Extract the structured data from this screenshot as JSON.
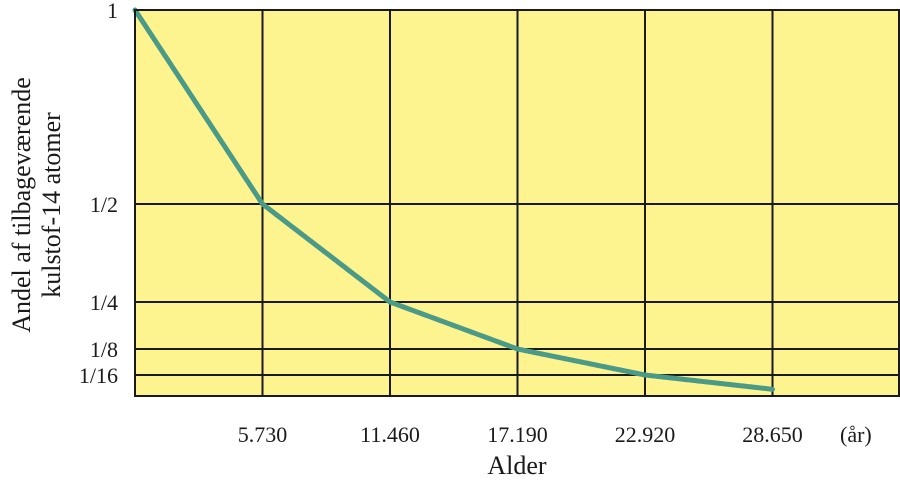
{
  "chart_data": {
    "type": "line",
    "title": "",
    "xlabel": "Alder",
    "x_unit": "(år)",
    "ylabel_lines": [
      "Andel af tilbageværende",
      "kulstof-14 atomer"
    ],
    "x_ticks": [
      {
        "value": 5730,
        "label": "5.730"
      },
      {
        "value": 11460,
        "label": "11.460"
      },
      {
        "value": 17190,
        "label": "17.190"
      },
      {
        "value": 22920,
        "label": "22.920"
      },
      {
        "value": 28650,
        "label": "28.650"
      }
    ],
    "xlim": [
      0,
      34380
    ],
    "y_ticks": [
      {
        "value": 1,
        "label": "1"
      },
      {
        "value": 0.5,
        "label": "1/2"
      },
      {
        "value": 0.25,
        "label": "1/4"
      },
      {
        "value": 0.125,
        "label": "1/8"
      },
      {
        "value": 0.0625,
        "label": "1/16"
      }
    ],
    "ylim": [
      0,
      1
    ],
    "series": [
      {
        "points": [
          {
            "x": 0,
            "y": 1
          },
          {
            "x": 5730,
            "y": 0.5
          },
          {
            "x": 11460,
            "y": 0.25
          },
          {
            "x": 17190,
            "y": 0.125
          },
          {
            "x": 22920,
            "y": 0.0625
          },
          {
            "x": 28650,
            "y": 0.03125
          }
        ]
      }
    ],
    "grid": true,
    "colors": {
      "background": "#fdf38f",
      "grid": "#1a1a1a",
      "line": "#4a9a87"
    }
  }
}
